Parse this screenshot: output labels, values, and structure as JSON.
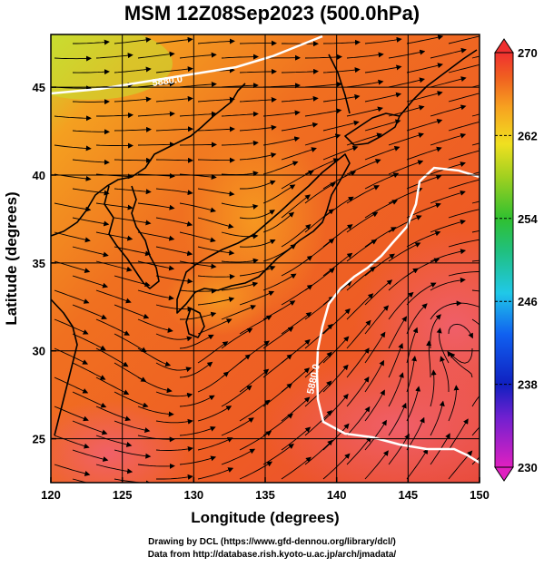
{
  "title": "MSM 12Z08Sep2023 (500.0hPa)",
  "x_axis": {
    "label": "Longitude (degrees)",
    "range": [
      120,
      150
    ],
    "ticks": [
      120,
      125,
      130,
      135,
      140,
      145,
      150
    ]
  },
  "y_axis": {
    "label": "Latitude  (degrees)",
    "range": [
      22.5,
      48
    ],
    "ticks": [
      25,
      30,
      35,
      40,
      45
    ]
  },
  "colorbar": {
    "range": [
      230,
      270
    ],
    "ticks": [
      230,
      238,
      246,
      254,
      262,
      270
    ]
  },
  "contours": [
    {
      "label": "5880.0"
    },
    {
      "label": "5880.0"
    }
  ],
  "credits": {
    "line1": "Drawing by DCL (https://www.gfd-dennou.org/library/dcl/)",
    "line2": "Data from http://database.rish.kyoto-u.ac.jp/arch/jmadata/"
  }
}
